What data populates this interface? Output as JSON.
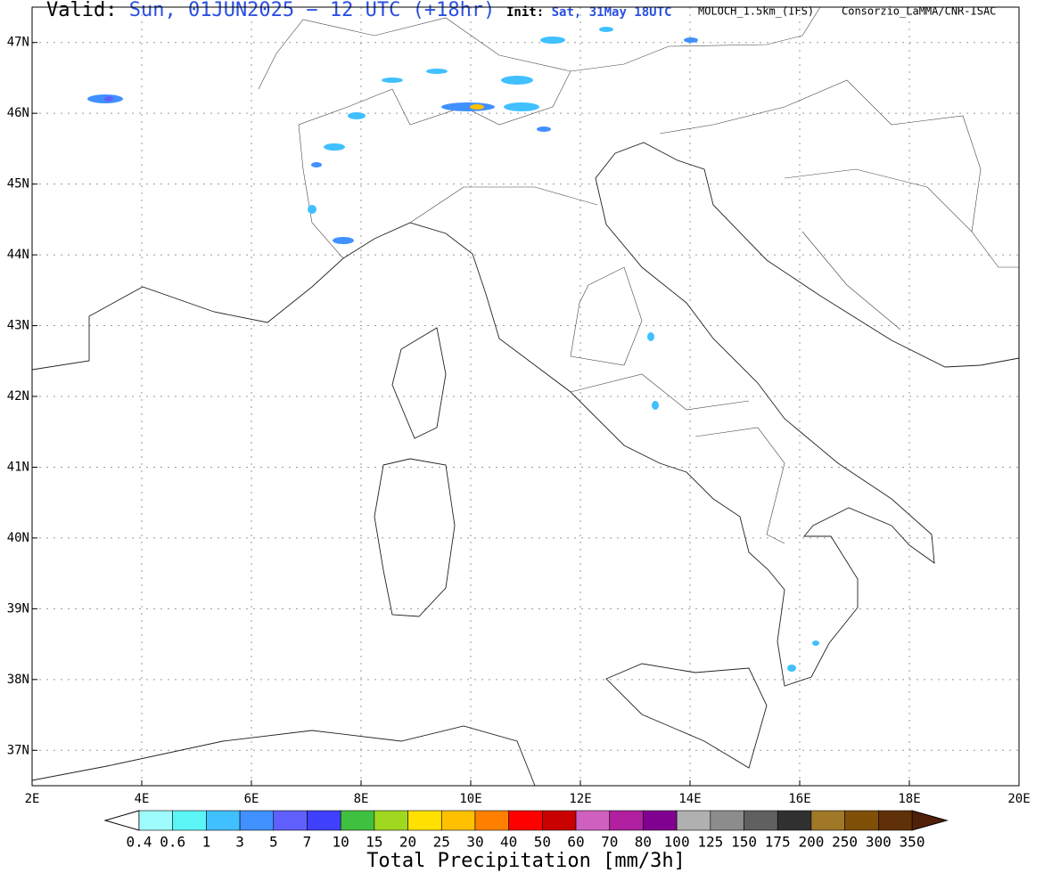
{
  "header": {
    "valid_label": "Valid:",
    "valid": "Sun, 01JUN2025 − 12 UTC (+18hr)",
    "init_label": "Init:",
    "init": "Sat, 31May 18UTC",
    "model": "MOLOCH_1.5km_(IFS)",
    "source": "Consorzio_LaMMA/CNR-ISAC"
  },
  "map": {
    "lon_range": [
      2,
      20
    ],
    "lat_range": [
      36.5,
      47.5
    ],
    "lon_ticks": [
      {
        "value": 2,
        "label": "2E"
      },
      {
        "value": 4,
        "label": "4E"
      },
      {
        "value": 6,
        "label": "6E"
      },
      {
        "value": 8,
        "label": "8E"
      },
      {
        "value": 10,
        "label": "10E"
      },
      {
        "value": 12,
        "label": "12E"
      },
      {
        "value": 14,
        "label": "14E"
      },
      {
        "value": 16,
        "label": "16E"
      },
      {
        "value": 18,
        "label": "18E"
      },
      {
        "value": 20,
        "label": "20E"
      }
    ],
    "lat_ticks": [
      {
        "value": 37,
        "label": "37N"
      },
      {
        "value": 38,
        "label": "38N"
      },
      {
        "value": 39,
        "label": "39N"
      },
      {
        "value": 40,
        "label": "40N"
      },
      {
        "value": 41,
        "label": "41N"
      },
      {
        "value": 42,
        "label": "42N"
      },
      {
        "value": 43,
        "label": "43N"
      },
      {
        "value": 44,
        "label": "44N"
      },
      {
        "value": 45,
        "label": "45N"
      },
      {
        "value": 46,
        "label": "46N"
      },
      {
        "value": 47,
        "label": "47N"
      }
    ]
  },
  "colorbar": {
    "title": "Total Precipitation [mm/3h]",
    "labels": [
      0.4,
      0.6,
      1,
      3,
      5,
      7,
      10,
      15,
      20,
      25,
      30,
      40,
      50,
      60,
      70,
      80,
      100,
      125,
      150,
      175,
      200,
      250,
      300,
      350
    ],
    "colors": [
      "#9ffcfc",
      "#5cf5f5",
      "#40c0ff",
      "#4090ff",
      "#6060ff",
      "#4040ff",
      "#40c040",
      "#a0d820",
      "#ffe000",
      "#ffc000",
      "#ff8000",
      "#ff0000",
      "#c80000",
      "#d060c0",
      "#b020a0",
      "#800090",
      "#b0b0b0",
      "#8c8c8c",
      "#606060",
      "#303030",
      "#a07828",
      "#805008",
      "#603008"
    ],
    "under_color": "#ffffff",
    "over_color": "#502008"
  }
}
